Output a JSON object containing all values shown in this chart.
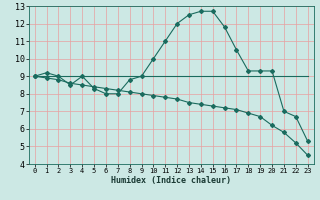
{
  "xlabel": "Humidex (Indice chaleur)",
  "xlim": [
    -0.5,
    23.5
  ],
  "ylim": [
    4,
    13
  ],
  "xticks": [
    0,
    1,
    2,
    3,
    4,
    5,
    6,
    7,
    8,
    9,
    10,
    11,
    12,
    13,
    14,
    15,
    16,
    17,
    18,
    19,
    20,
    21,
    22,
    23
  ],
  "yticks": [
    4,
    5,
    6,
    7,
    8,
    9,
    10,
    11,
    12,
    13
  ],
  "bg_color": "#cce8e4",
  "line_color": "#1a6b5e",
  "grid_major_color": "#f0c8c8",
  "grid_minor_color": "#d8eeea",
  "line1_x": [
    0,
    1,
    2,
    3,
    4,
    5,
    6,
    7,
    8,
    9,
    10,
    11,
    12,
    13,
    14,
    15,
    16,
    17,
    18,
    19,
    20,
    21,
    22,
    23
  ],
  "line1_y": [
    9.0,
    9.2,
    9.0,
    8.5,
    9.0,
    8.3,
    8.0,
    8.0,
    8.8,
    9.0,
    10.0,
    11.0,
    12.0,
    12.5,
    12.7,
    12.7,
    11.8,
    10.5,
    9.3,
    9.3,
    9.3,
    7.0,
    6.7,
    5.3
  ],
  "line2_x": [
    0,
    9,
    20,
    23
  ],
  "line2_y": [
    9.0,
    9.0,
    9.0,
    9.0
  ],
  "line3_x": [
    0,
    1,
    2,
    3,
    4,
    5,
    6,
    7,
    8,
    9,
    10,
    11,
    12,
    13,
    14,
    15,
    16,
    17,
    18,
    19,
    20,
    21,
    22,
    23
  ],
  "line3_y": [
    9.0,
    8.9,
    8.8,
    8.6,
    8.5,
    8.4,
    8.3,
    8.2,
    8.1,
    8.0,
    7.9,
    7.8,
    7.7,
    7.5,
    7.4,
    7.3,
    7.2,
    7.1,
    6.9,
    6.7,
    6.2,
    5.8,
    5.2,
    4.5
  ]
}
